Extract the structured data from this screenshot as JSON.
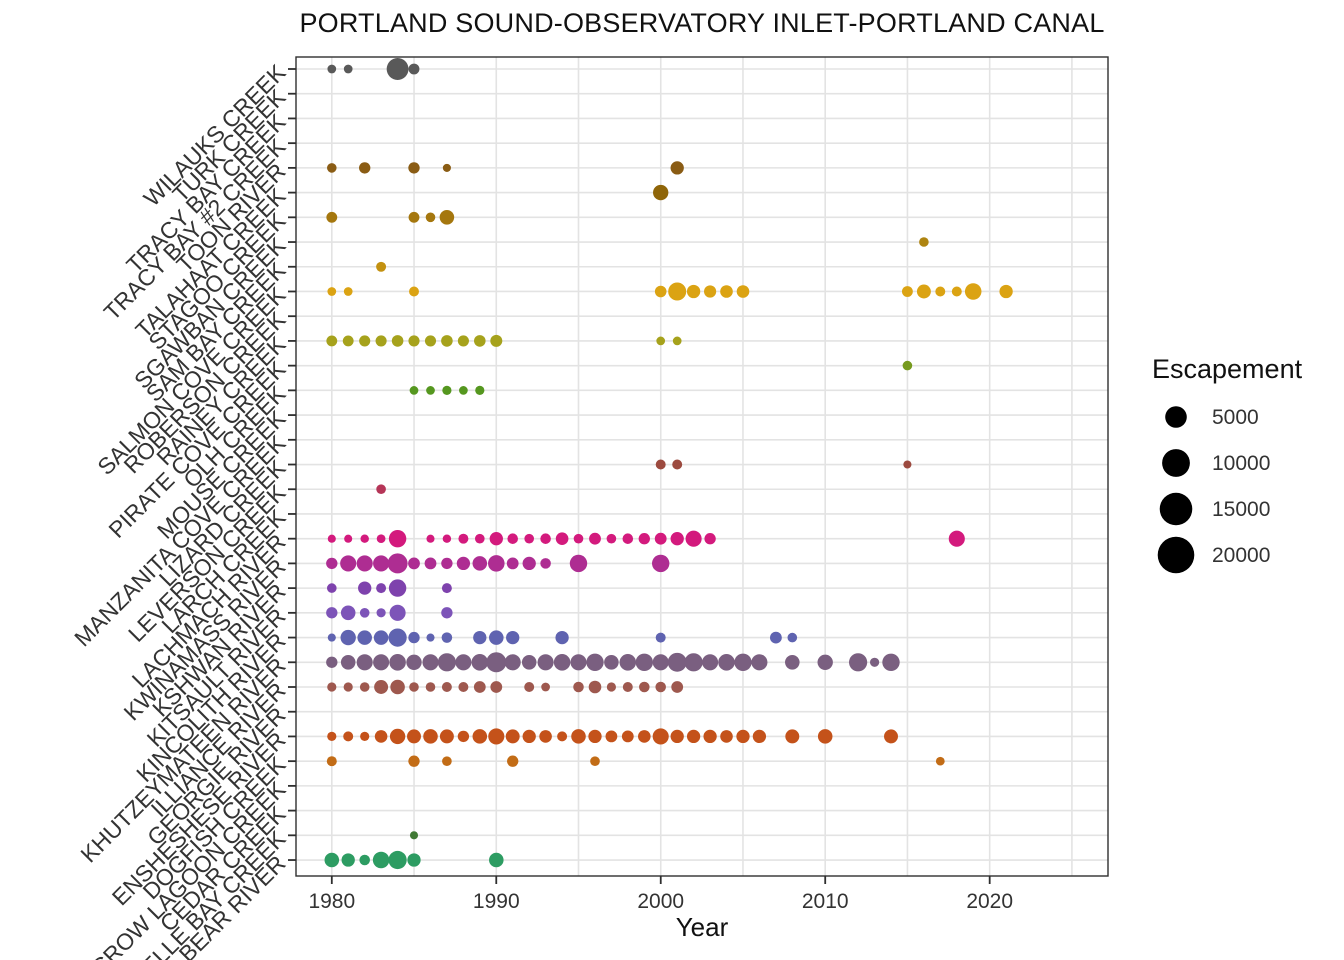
{
  "chart_data": {
    "type": "scatter",
    "title": "PORTLAND SOUND-OBSERVATORY INLET-PORTLAND CANAL",
    "xlabel": "Year",
    "ylabel": "",
    "x_range": [
      1977.8,
      2027.2
    ],
    "x_ticks": [
      1980,
      1990,
      2000,
      2010,
      2020
    ],
    "x_gridline_step": 5,
    "grid": true,
    "legend": {
      "title": "Escapement",
      "sizes": [
        5000,
        10000,
        15000,
        20000
      ],
      "position": "right",
      "circle_color": "#000000"
    },
    "categories": [
      "WILAUKS CREEK",
      "TURK CREEK",
      "TRACY BAY CREEK",
      "TRACY BAY #2 CREEK",
      "TOON RIVER",
      "TALAHAAT CREEK",
      "STAGOO CREEK",
      "SGAWBAN CREEK",
      "SAM BAY CREEK",
      "SALMON COVE CREEK",
      "ROBERSON CREEK",
      "RAINEY CREEK",
      "PIRATE COVE CREEK",
      "OLH CREEK",
      "MOUSE CREEK",
      "MANZANITA COVE CREEK",
      "LIZARD CREEK",
      "LEVERSON CREEK",
      "LARCH CREEK",
      "LACHMACH RIVER",
      "KWINAMASS RIVER",
      "KSHWAN RIVER",
      "KITSAULT RIVER",
      "KINCOLITH RIVER",
      "KHUTZEYMATEEN RIVER",
      "ILLIANCE RIVER",
      "GEORGIE RIVER",
      "ENSHESHESE RIVER",
      "DOGFISH CREEK",
      "CROW LAGOON CREEK",
      "CEDAR CREEK",
      "BELLE BAY CREEK",
      "BEAR RIVER"
    ],
    "series": [
      {
        "name": "WILAUKS CREEK",
        "color": "#595959",
        "points": [
          [
            1980,
            100
          ],
          [
            1981,
            100
          ],
          [
            1984,
            5200
          ],
          [
            1985,
            400
          ]
        ]
      },
      {
        "name": "TOON RIVER",
        "color": "#8a5c14",
        "points": [
          [
            1980,
            200
          ],
          [
            1982,
            500
          ],
          [
            1985,
            500
          ],
          [
            1987,
            50
          ],
          [
            2001,
            1000
          ]
        ]
      },
      {
        "name": "TALAHAAT CREEK",
        "color": "#8f6508",
        "points": [
          [
            2000,
            1700
          ]
        ]
      },
      {
        "name": "STAGOO CREEK",
        "color": "#a5770e",
        "points": [
          [
            1980,
            400
          ],
          [
            1985,
            400
          ],
          [
            1986,
            200
          ],
          [
            1987,
            1400
          ]
        ]
      },
      {
        "name": "SGAWBAN CREEK",
        "color": "#ae8410",
        "points": [
          [
            2016,
            200
          ]
        ]
      },
      {
        "name": "SAM BAY CREEK",
        "color": "#c39110",
        "points": [
          [
            1983,
            250
          ]
        ]
      },
      {
        "name": "SALMON COVE CREEK",
        "color": "#dba313",
        "points": [
          [
            1980,
            100
          ],
          [
            1981,
            100
          ],
          [
            1985,
            250
          ],
          [
            2000,
            550
          ],
          [
            2001,
            2900
          ],
          [
            2002,
            1000
          ],
          [
            2003,
            700
          ],
          [
            2004,
            800
          ],
          [
            2005,
            800
          ],
          [
            2015,
            400
          ],
          [
            2016,
            1200
          ],
          [
            2017,
            250
          ],
          [
            2018,
            250
          ],
          [
            2019,
            2200
          ],
          [
            2021,
            1000
          ]
        ]
      },
      {
        "name": "RAINEY CREEK",
        "color": "#a6a21c",
        "points": [
          [
            1980,
            400
          ],
          [
            1981,
            400
          ],
          [
            1982,
            450
          ],
          [
            1983,
            450
          ],
          [
            1984,
            550
          ],
          [
            1985,
            450
          ],
          [
            1986,
            450
          ],
          [
            1987,
            550
          ],
          [
            1988,
            450
          ],
          [
            1989,
            550
          ],
          [
            1990,
            650
          ],
          [
            2000,
            100
          ],
          [
            2001,
            100
          ]
        ]
      },
      {
        "name": "PIRATE COVE CREEK",
        "color": "#769a1e",
        "points": [
          [
            2015,
            200
          ]
        ]
      },
      {
        "name": "OLH CREEK",
        "color": "#55971f",
        "points": [
          [
            1985,
            100
          ],
          [
            1986,
            100
          ],
          [
            1987,
            150
          ],
          [
            1988,
            100
          ],
          [
            1989,
            150
          ]
        ]
      },
      {
        "name": "LIZARD CREEK",
        "color": "#9c4a3f",
        "points": [
          [
            2000,
            250
          ],
          [
            2001,
            250
          ],
          [
            2015,
            50
          ]
        ]
      },
      {
        "name": "LEVERSON CREEK",
        "color": "#b53557",
        "points": [
          [
            1983,
            200
          ]
        ]
      },
      {
        "name": "LACHMACH RIVER",
        "color": "#d31a7d",
        "points": [
          [
            1980,
            50
          ],
          [
            1981,
            50
          ],
          [
            1982,
            75
          ],
          [
            1983,
            100
          ],
          [
            1984,
            2600
          ],
          [
            1986,
            50
          ],
          [
            1987,
            75
          ],
          [
            1988,
            250
          ],
          [
            1989,
            200
          ],
          [
            1990,
            1000
          ],
          [
            1991,
            350
          ],
          [
            1992,
            200
          ],
          [
            1993,
            350
          ],
          [
            1994,
            800
          ],
          [
            1995,
            200
          ],
          [
            1996,
            600
          ],
          [
            1997,
            200
          ],
          [
            1998,
            350
          ],
          [
            1999,
            500
          ],
          [
            2000,
            600
          ],
          [
            2001,
            1000
          ],
          [
            2002,
            2000
          ],
          [
            2003,
            500
          ],
          [
            2018,
            2000
          ]
        ]
      },
      {
        "name": "KWINAMASS RIVER",
        "color": "#ae2d92",
        "points": [
          [
            1980,
            500
          ],
          [
            1981,
            2000
          ],
          [
            1982,
            2000
          ],
          [
            1983,
            2000
          ],
          [
            1984,
            4000
          ],
          [
            1985,
            600
          ],
          [
            1986,
            600
          ],
          [
            1987,
            500
          ],
          [
            1988,
            1000
          ],
          [
            1989,
            1400
          ],
          [
            1990,
            2200
          ],
          [
            1991,
            600
          ],
          [
            1992,
            1000
          ],
          [
            1993,
            350
          ],
          [
            1995,
            2600
          ],
          [
            2000,
            2600
          ]
        ]
      },
      {
        "name": "KSHWAN RIVER",
        "color": "#7e42ad",
        "points": [
          [
            1980,
            200
          ],
          [
            1982,
            1000
          ],
          [
            1983,
            250
          ],
          [
            1984,
            2600
          ],
          [
            1987,
            250
          ]
        ]
      },
      {
        "name": "KITSAULT RIVER",
        "color": "#7d54b8",
        "points": [
          [
            1980,
            500
          ],
          [
            1981,
            1400
          ],
          [
            1982,
            200
          ],
          [
            1983,
            150
          ],
          [
            1984,
            2000
          ],
          [
            1987,
            500
          ]
        ]
      },
      {
        "name": "KINCOLITH RIVER",
        "color": "#5f63b0",
        "points": [
          [
            1980,
            50
          ],
          [
            1981,
            1700
          ],
          [
            1982,
            1400
          ],
          [
            1983,
            1400
          ],
          [
            1984,
            3000
          ],
          [
            1985,
            500
          ],
          [
            1986,
            50
          ],
          [
            1987,
            350
          ],
          [
            1989,
            1000
          ],
          [
            1990,
            1400
          ],
          [
            1991,
            1000
          ],
          [
            1994,
            1000
          ],
          [
            2000,
            250
          ],
          [
            2007,
            600
          ],
          [
            2008,
            200
          ]
        ]
      },
      {
        "name": "KHUTZEYMATEEN RIVER",
        "color": "#7a5f80",
        "points": [
          [
            1980,
            500
          ],
          [
            1981,
            1400
          ],
          [
            1982,
            2000
          ],
          [
            1983,
            2000
          ],
          [
            1984,
            2200
          ],
          [
            1985,
            1700
          ],
          [
            1986,
            2000
          ],
          [
            1987,
            3000
          ],
          [
            1988,
            2000
          ],
          [
            1989,
            2200
          ],
          [
            1990,
            4000
          ],
          [
            1991,
            2000
          ],
          [
            1992,
            1400
          ],
          [
            1993,
            2000
          ],
          [
            1994,
            2200
          ],
          [
            1995,
            2000
          ],
          [
            1996,
            2600
          ],
          [
            1997,
            1400
          ],
          [
            1998,
            2200
          ],
          [
            1999,
            2600
          ],
          [
            2000,
            2000
          ],
          [
            2001,
            3400
          ],
          [
            2002,
            3000
          ],
          [
            2003,
            2000
          ],
          [
            2004,
            2200
          ],
          [
            2005,
            2600
          ],
          [
            2006,
            2000
          ],
          [
            2008,
            1400
          ],
          [
            2010,
            1700
          ],
          [
            2012,
            3000
          ],
          [
            2013,
            150
          ],
          [
            2014,
            2600
          ]
        ]
      },
      {
        "name": "ILLIANCE RIVER",
        "color": "#9e584e",
        "points": [
          [
            1980,
            150
          ],
          [
            1981,
            150
          ],
          [
            1982,
            200
          ],
          [
            1983,
            1200
          ],
          [
            1984,
            1400
          ],
          [
            1985,
            200
          ],
          [
            1986,
            200
          ],
          [
            1987,
            250
          ],
          [
            1988,
            250
          ],
          [
            1989,
            600
          ],
          [
            1990,
            600
          ],
          [
            1992,
            250
          ],
          [
            1993,
            100
          ],
          [
            1995,
            350
          ],
          [
            1996,
            800
          ],
          [
            1997,
            150
          ],
          [
            1998,
            250
          ],
          [
            1999,
            350
          ],
          [
            2000,
            350
          ],
          [
            2001,
            600
          ]
        ]
      },
      {
        "name": "ENSHESHESE RIVER",
        "color": "#c4521a",
        "points": [
          [
            1980,
            150
          ],
          [
            1981,
            250
          ],
          [
            1982,
            150
          ],
          [
            1983,
            800
          ],
          [
            1984,
            1700
          ],
          [
            1985,
            1200
          ],
          [
            1986,
            1400
          ],
          [
            1987,
            1200
          ],
          [
            1988,
            500
          ],
          [
            1989,
            1400
          ],
          [
            1990,
            2000
          ],
          [
            1991,
            1200
          ],
          [
            1992,
            1000
          ],
          [
            1993,
            800
          ],
          [
            1994,
            250
          ],
          [
            1995,
            1400
          ],
          [
            1996,
            1000
          ],
          [
            1997,
            600
          ],
          [
            1998,
            600
          ],
          [
            1999,
            800
          ],
          [
            2000,
            2000
          ],
          [
            2001,
            1000
          ],
          [
            2002,
            1000
          ],
          [
            2003,
            1000
          ],
          [
            2004,
            800
          ],
          [
            2005,
            1000
          ],
          [
            2006,
            1000
          ],
          [
            2008,
            1200
          ],
          [
            2010,
            1400
          ],
          [
            2014,
            1200
          ]
        ]
      },
      {
        "name": "DOGFISH CREEK",
        "color": "#c26c16",
        "points": [
          [
            1980,
            250
          ],
          [
            1985,
            500
          ],
          [
            1987,
            200
          ],
          [
            1991,
            500
          ],
          [
            1996,
            200
          ],
          [
            2017,
            100
          ]
        ]
      },
      {
        "name": "BELLE BAY CREEK",
        "color": "#417a35",
        "points": [
          [
            1985,
            50
          ]
        ]
      },
      {
        "name": "BEAR RIVER",
        "color": "#2d9c62",
        "points": [
          [
            1980,
            1400
          ],
          [
            1981,
            1000
          ],
          [
            1982,
            350
          ],
          [
            1983,
            2200
          ],
          [
            1984,
            3000
          ],
          [
            1985,
            1000
          ],
          [
            1990,
            1400
          ]
        ]
      }
    ]
  }
}
